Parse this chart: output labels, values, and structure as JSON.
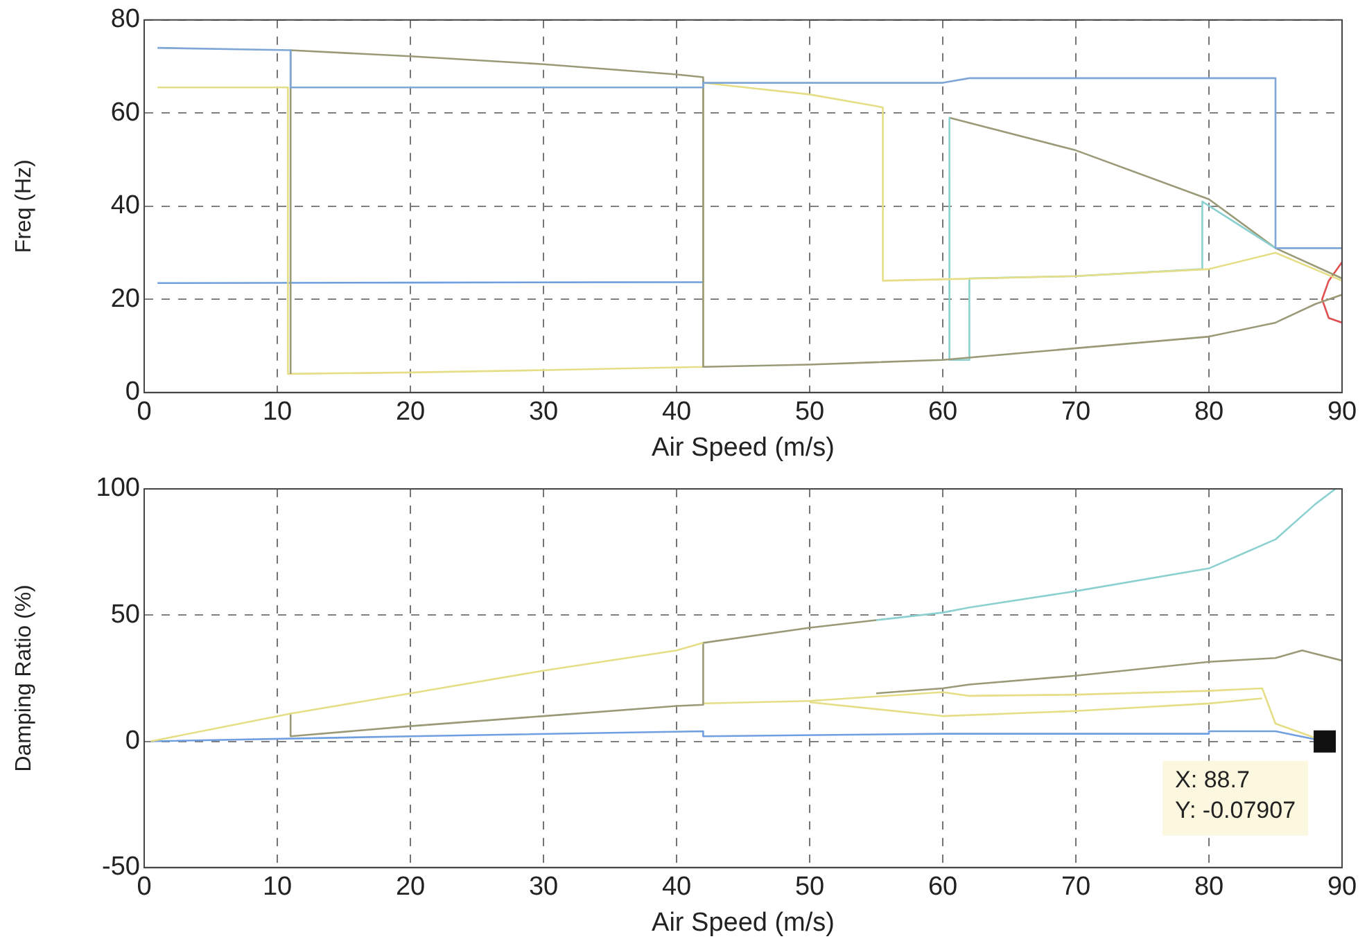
{
  "chart_data": [
    {
      "type": "line",
      "xlabel": "Air Speed (m/s)",
      "ylabel": "Freq (Hz)",
      "xlim": [
        0,
        90
      ],
      "xticks": [
        0,
        10,
        20,
        30,
        40,
        50,
        60,
        70,
        80,
        90
      ],
      "ylim": [
        0,
        80
      ],
      "yticks": [
        0,
        20,
        40,
        60,
        80
      ],
      "grid": true,
      "marker": "none",
      "line_style": "solid",
      "series": [
        {
          "color": "#7ea6d6",
          "x": [
            1,
            11,
            11,
            20,
            30,
            42,
            42,
            60,
            62,
            85,
            85,
            90
          ],
          "values": [
            74,
            73.5,
            65.5,
            65.5,
            65.5,
            65.5,
            66.5,
            66.5,
            67.5,
            67.5,
            31,
            31
          ]
        },
        {
          "color": "#9a9a78",
          "x": [
            11,
            11,
            20,
            30,
            40,
            42,
            42,
            50,
            55,
            60,
            70,
            80,
            85,
            88,
            90
          ],
          "values": [
            4,
            73.5,
            72.2,
            70.5,
            68.3,
            67.7,
            5.5,
            6,
            6.5,
            7,
            9.5,
            12,
            15,
            19,
            21
          ]
        },
        {
          "color": "#e6de86",
          "x": [
            1,
            10.8,
            10.8,
            20,
            30,
            42,
            42,
            50,
            55,
            55.5,
            55.5,
            60,
            70,
            80,
            85,
            90
          ],
          "values": [
            65.5,
            65.5,
            4,
            4.3,
            4.8,
            5.5,
            66.5,
            64,
            61.5,
            61.2,
            24,
            24.3,
            25,
            26.5,
            30,
            24
          ]
        },
        {
          "color": "#8cd0d0",
          "x": [
            60.5,
            60.5,
            62,
            62,
            70,
            79.5,
            79.5,
            85
          ],
          "values": [
            59,
            7,
            7,
            24.5,
            25,
            26.5,
            41,
            31
          ]
        },
        {
          "color": "#9a9a78",
          "x": [
            60.5,
            70,
            80,
            85,
            90
          ],
          "values": [
            59,
            52,
            41.5,
            31,
            24.5
          ]
        },
        {
          "color": "#6f9fe0",
          "x": [
            1,
            20,
            42,
            42
          ],
          "values": [
            23.5,
            23.6,
            23.7,
            67
          ]
        },
        {
          "color": "#e05050",
          "x": [
            90,
            89,
            88.5,
            89,
            90
          ],
          "values": [
            28,
            24,
            20,
            16,
            15
          ]
        }
      ]
    },
    {
      "type": "line",
      "xlabel": "Air Speed (m/s)",
      "ylabel": "Damping Ratio (%)",
      "xlim": [
        0,
        90
      ],
      "xticks": [
        0,
        10,
        20,
        30,
        40,
        50,
        60,
        70,
        80,
        90
      ],
      "ylim": [
        -50,
        100
      ],
      "yticks": [
        -50,
        0,
        50,
        100
      ],
      "grid": true,
      "marker": "none",
      "line_style": "solid",
      "annotations": [
        {
          "text": "X: 88.7\nY: -0.07907",
          "x": 88.7,
          "y": -0.07907
        }
      ],
      "series": [
        {
          "color": "#e6de86",
          "x": [
            0.5,
            11,
            20,
            30,
            40,
            42
          ],
          "values": [
            0,
            11,
            19,
            28,
            36,
            39
          ]
        },
        {
          "color": "#9a9a78",
          "x": [
            11,
            11,
            20,
            30,
            40,
            42,
            42,
            50,
            55
          ],
          "values": [
            11,
            2,
            6,
            10,
            14,
            14.5,
            39,
            45,
            48
          ]
        },
        {
          "color": "#8cd0d0",
          "x": [
            55,
            60,
            62,
            70,
            80,
            85,
            88,
            89.5
          ],
          "values": [
            48,
            51,
            53,
            59.5,
            68.5,
            80,
            94,
            100
          ]
        },
        {
          "color": "#e6de86",
          "x": [
            42,
            50,
            60,
            62,
            70,
            80,
            84,
            85,
            88.7
          ],
          "values": [
            15,
            16,
            19.5,
            18,
            18.5,
            20,
            21,
            7,
            0
          ]
        },
        {
          "color": "#9a9a78",
          "x": [
            55,
            60,
            62,
            70,
            80,
            85,
            87,
            90
          ],
          "values": [
            19,
            21,
            22.5,
            26,
            31.5,
            33,
            36,
            32
          ]
        },
        {
          "color": "#e6de86",
          "x": [
            50,
            60,
            70,
            80,
            84
          ],
          "values": [
            15.5,
            10,
            12,
            15,
            17
          ]
        },
        {
          "color": "#6f9fe0",
          "x": [
            0.5,
            20,
            42,
            42,
            60,
            80,
            80,
            85,
            88.7
          ],
          "values": [
            0,
            2,
            4,
            2,
            3,
            3,
            4,
            4,
            0
          ]
        }
      ]
    }
  ]
}
